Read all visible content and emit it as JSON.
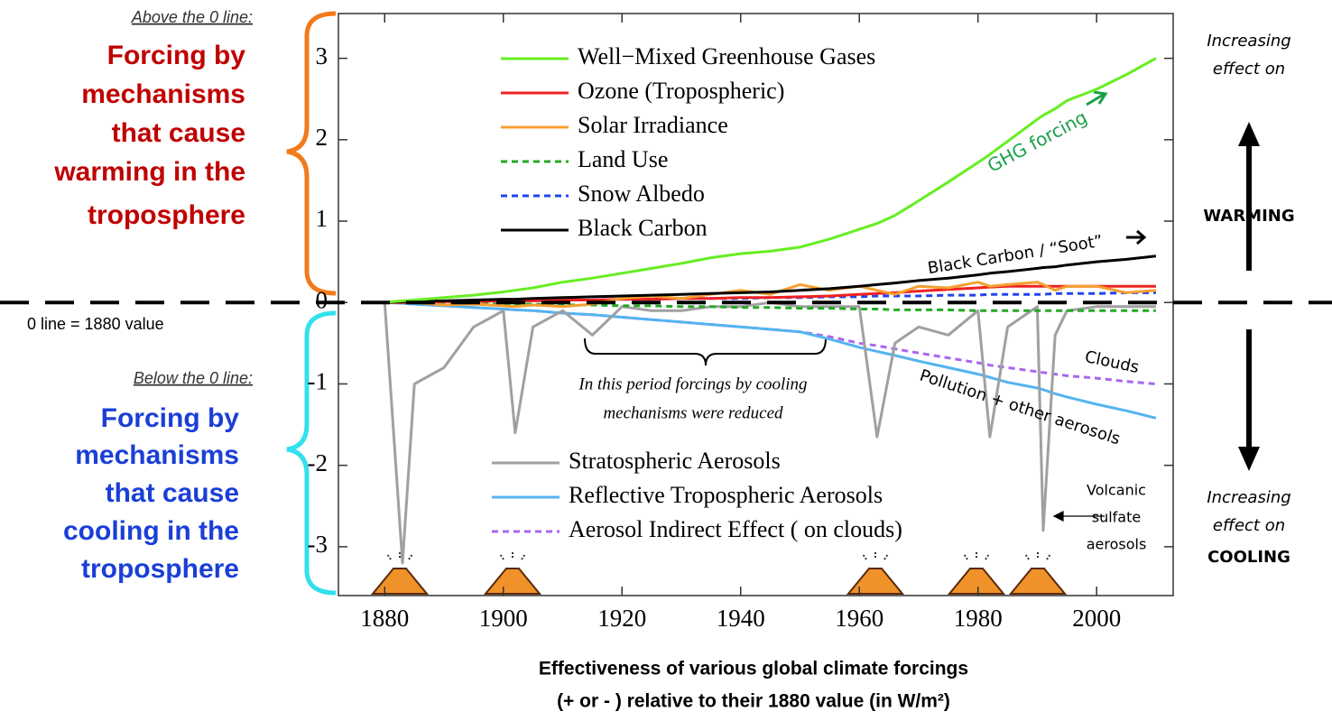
{
  "chart_data": {
    "type": "line",
    "title": [
      "Effectiveness of various global climate forcings",
      "(+ or - ) relative to their 1880 value   (in W/m²)"
    ],
    "x": [
      1880,
      1883,
      1885,
      1890,
      1895,
      1900,
      1902,
      1905,
      1910,
      1915,
      1920,
      1925,
      1930,
      1935,
      1940,
      1945,
      1950,
      1955,
      1960,
      1963,
      1966,
      1970,
      1975,
      1980,
      1982,
      1985,
      1990,
      1991,
      1993,
      1995,
      2000,
      2005,
      2010
    ],
    "xlim": [
      1872.2,
      2012.9
    ],
    "xticks": [
      1880,
      1900,
      1920,
      1940,
      1960,
      1980,
      2000
    ],
    "ylim": [
      -3.6,
      3.55
    ],
    "yticks": [
      -3,
      -2,
      -1,
      0,
      1,
      2,
      3
    ],
    "series": [
      {
        "name": "Well−Mixed Greenhouse Gases",
        "color": "#66ee22",
        "dashed": false,
        "values": [
          0,
          0.02,
          0.03,
          0.06,
          0.09,
          0.13,
          0.15,
          0.18,
          0.25,
          0.3,
          0.36,
          0.42,
          0.48,
          0.55,
          0.6,
          0.63,
          0.68,
          0.78,
          0.9,
          0.97,
          1.07,
          1.25,
          1.48,
          1.72,
          1.82,
          1.98,
          2.25,
          2.3,
          2.38,
          2.48,
          2.62,
          2.8,
          3.0
        ]
      },
      {
        "name": "Ozone  (Tropospheric)",
        "color": "#ee2222",
        "dashed": false,
        "values": [
          0,
          0,
          0,
          0.01,
          0.01,
          0.02,
          0.02,
          0.02,
          0.03,
          0.03,
          0.04,
          0.04,
          0.05,
          0.05,
          0.06,
          0.06,
          0.07,
          0.08,
          0.1,
          0.11,
          0.12,
          0.14,
          0.16,
          0.18,
          0.19,
          0.2,
          0.2,
          0.2,
          0.2,
          0.2,
          0.2,
          0.2,
          0.2
        ]
      },
      {
        "name": "Solar Irradiance",
        "color": "#f5a030",
        "dashed": false,
        "values": [
          0,
          0.02,
          0,
          -0.03,
          -0.02,
          -0.04,
          -0.05,
          -0.03,
          -0.05,
          -0.02,
          0.05,
          0.08,
          0.05,
          0.1,
          0.15,
          0.1,
          0.22,
          0.15,
          0.2,
          0.15,
          0.1,
          0.2,
          0.18,
          0.25,
          0.2,
          0.22,
          0.25,
          0.22,
          0.15,
          0.2,
          0.2,
          0.12,
          0.15
        ]
      },
      {
        "name": "Land Use",
        "color": "#22aa22",
        "dashed": true,
        "values": [
          0,
          0,
          0,
          -0.01,
          -0.01,
          -0.02,
          -0.02,
          -0.02,
          -0.03,
          -0.03,
          -0.04,
          -0.04,
          -0.05,
          -0.05,
          -0.06,
          -0.06,
          -0.07,
          -0.07,
          -0.08,
          -0.08,
          -0.09,
          -0.09,
          -0.09,
          -0.1,
          -0.1,
          -0.1,
          -0.1,
          -0.1,
          -0.1,
          -0.1,
          -0.1,
          -0.1,
          -0.1
        ]
      },
      {
        "name": "Snow Albedo",
        "color": "#2244ee",
        "dashed": true,
        "values": [
          0,
          0,
          0.01,
          0.01,
          0.01,
          0.02,
          0.02,
          0.02,
          0.03,
          0.03,
          0.04,
          0.04,
          0.05,
          0.05,
          0.05,
          0.06,
          0.06,
          0.07,
          0.07,
          0.08,
          0.08,
          0.08,
          0.09,
          0.09,
          0.1,
          0.1,
          0.1,
          0.1,
          0.11,
          0.11,
          0.11,
          0.12,
          0.12
        ]
      },
      {
        "name": "Black Carbon",
        "color": "#000000",
        "dashed": false,
        "values": [
          0,
          0.01,
          0.01,
          0.02,
          0.03,
          0.04,
          0.04,
          0.05,
          0.06,
          0.07,
          0.08,
          0.09,
          0.1,
          0.11,
          0.12,
          0.13,
          0.15,
          0.17,
          0.2,
          0.22,
          0.24,
          0.27,
          0.3,
          0.34,
          0.36,
          0.38,
          0.42,
          0.43,
          0.44,
          0.46,
          0.5,
          0.53,
          0.57
        ]
      },
      {
        "name": "Stratospheric Aerosols",
        "color": "#a0a0a0",
        "dashed": false,
        "values": [
          0,
          -3.2,
          -1.0,
          -0.8,
          -0.3,
          -0.1,
          -1.6,
          -0.3,
          -0.1,
          -0.4,
          -0.05,
          -0.1,
          -0.1,
          -0.05,
          -0.05,
          0,
          -0.05,
          -0.05,
          -0.05,
          -1.65,
          -0.5,
          -0.3,
          -0.4,
          -0.1,
          -1.65,
          -0.3,
          -0.05,
          -2.8,
          -0.4,
          -0.1,
          -0.05,
          -0.05,
          -0.05
        ]
      },
      {
        "name": "Reflective Tropospheric Aerosols",
        "color": "#55b4f0",
        "dashed": false,
        "values": [
          0,
          -0.01,
          -0.02,
          -0.04,
          -0.06,
          -0.08,
          -0.09,
          -0.1,
          -0.13,
          -0.15,
          -0.18,
          -0.21,
          -0.24,
          -0.27,
          -0.3,
          -0.33,
          -0.36,
          -0.45,
          -0.55,
          -0.6,
          -0.65,
          -0.72,
          -0.8,
          -0.88,
          -0.92,
          -0.98,
          -1.05,
          -1.07,
          -1.12,
          -1.16,
          -1.25,
          -1.33,
          -1.42
        ]
      },
      {
        "name": "Aerosol Indirect Effect ( on clouds)",
        "color": "#aa66ee",
        "dashed": true,
        "values": [
          0,
          -0.01,
          -0.02,
          -0.04,
          -0.06,
          -0.08,
          -0.09,
          -0.1,
          -0.13,
          -0.15,
          -0.18,
          -0.21,
          -0.24,
          -0.27,
          -0.3,
          -0.33,
          -0.36,
          -0.42,
          -0.5,
          -0.53,
          -0.57,
          -0.62,
          -0.68,
          -0.74,
          -0.77,
          -0.8,
          -0.85,
          -0.86,
          -0.88,
          -0.9,
          -0.93,
          -0.97,
          -1.0
        ]
      }
    ],
    "annotations": [
      "GHG  forcing",
      "Black Carbon / “Soot”",
      "In this period forcings by cooling",
      "mechanisms were reduced",
      "Clouds",
      "Pollution  + other aerosols",
      "Volcanic",
      "sulfate",
      "aerosols"
    ]
  },
  "left_panel": {
    "above_heading": "Above the 0 line:",
    "warming_text": [
      "Forcing by",
      "mechanisms",
      "that cause",
      "warming in the",
      "troposphere"
    ],
    "zero_note": "0 line = 1880 value",
    "below_heading": "Below the 0 line:",
    "cooling_text": [
      "Forcing by",
      "mechanisms",
      "that cause",
      "cooling in the",
      "troposphere"
    ]
  },
  "right_panel": {
    "warming_caption": [
      "Increasing",
      "effect on"
    ],
    "warming_label": "WARMING",
    "cooling_caption": [
      "Increasing",
      "effect on"
    ],
    "cooling_label": "COOLING"
  }
}
